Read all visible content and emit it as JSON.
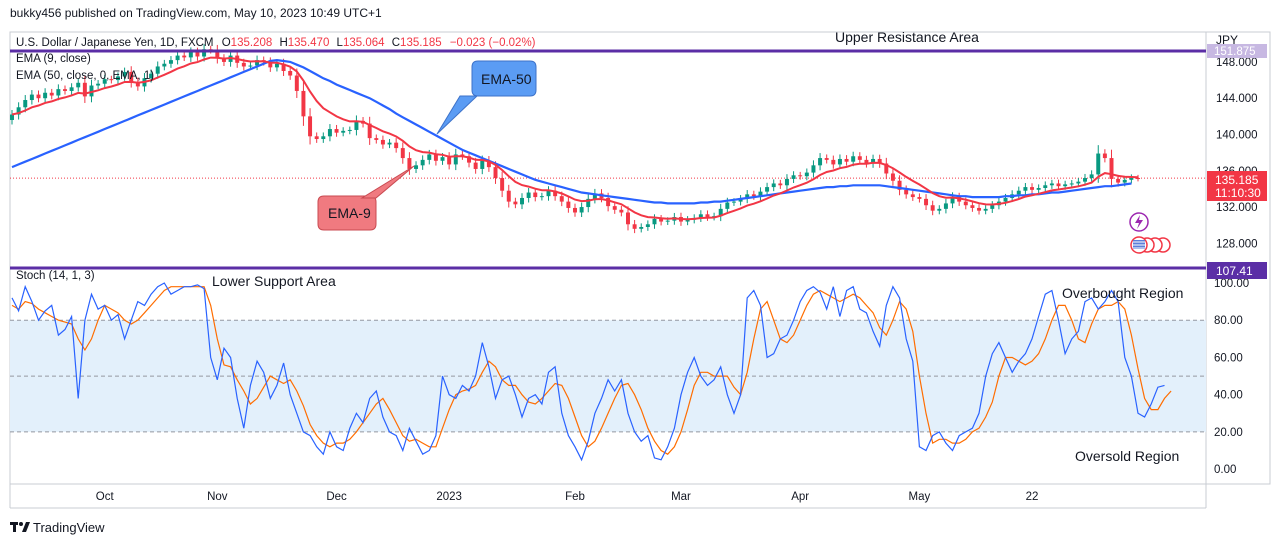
{
  "header": {
    "publisher": "bukky456 published on TradingView.com, May 10, 2023 10:49 UTC+1"
  },
  "footer": {
    "brand": "TradingView"
  },
  "colors": {
    "ema9": "#f23645",
    "ema50": "#2962ff",
    "candle_up": "#089981",
    "candle_down": "#f23645",
    "level_line": "#5b2ea6",
    "stoch_k": "#2962ff",
    "stoch_d": "#ff6d00",
    "band_fill": "#e3f0fb",
    "callout_ema50": "#5b9cf4",
    "callout_ema9": "#f07a80"
  },
  "legend": {
    "symbol_line": "U.S. Dollar / Japanese Yen, 1D, FXCM",
    "ohlc": [
      {
        "k": "O",
        "v": "135.208"
      },
      {
        "k": "H",
        "v": "135.470"
      },
      {
        "k": "L",
        "v": "135.064"
      },
      {
        "k": "C",
        "v": "135.185"
      }
    ],
    "change": "−0.023 (−0.02%)",
    "ema9_label": "EMA (9, close)",
    "ema50_label": "EMA (50, close, 0, EMA, 1)"
  },
  "annotations": {
    "upper_resistance": "Upper Resistance Area",
    "lower_support": "Lower Support Area",
    "ema50_callout": "EMA-50",
    "ema9_callout": "EMA-9",
    "overbought": "Overbought Region",
    "oversold": "Oversold Region"
  },
  "chart_data": [
    {
      "type": "candlestick",
      "currency": "JPY",
      "y_ticks": [
        "128.000",
        "132.000",
        "136.000",
        "140.000",
        "144.000",
        "148.000"
      ],
      "ylim": [
        125.5,
        151.3
      ],
      "resistance_level": "151.875",
      "support_level": "107.41",
      "last_price": "135.185",
      "countdown": "11:10:30",
      "x_labels": [
        "Oct",
        "Nov",
        "Dec",
        "2023",
        "Feb",
        "Mar",
        "Apr",
        "May",
        "22"
      ],
      "close": [
        142.2,
        143.0,
        143.8,
        144.4,
        144.0,
        144.6,
        144.3,
        145.0,
        144.8,
        145.2,
        145.7,
        144.2,
        145.4,
        145.6,
        146.1,
        146.0,
        146.4,
        146.9,
        145.8,
        145.3,
        146.2,
        146.7,
        147.5,
        147.8,
        148.2,
        148.7,
        148.5,
        149.1,
        148.6,
        149.4,
        149.3,
        148.4,
        148.0,
        148.7,
        147.9,
        147.5,
        147.6,
        148.2,
        148.0,
        147.4,
        147.8,
        147.0,
        146.5,
        144.8,
        142.0,
        139.8,
        139.5,
        139.8,
        140.6,
        140.2,
        140.4,
        140.5,
        141.5,
        141.2,
        139.6,
        139.4,
        138.9,
        139.1,
        138.5,
        137.4,
        136.2,
        136.6,
        137.2,
        137.8,
        137.1,
        137.5,
        136.7,
        137.8,
        137.6,
        136.9,
        136.2,
        137.1,
        136.4,
        135.2,
        133.8,
        132.6,
        132.3,
        133.0,
        133.6,
        133.1,
        133.2,
        133.8,
        133.2,
        132.6,
        131.9,
        131.4,
        132.0,
        132.9,
        133.5,
        133.0,
        132.1,
        131.7,
        131.4,
        130.1,
        129.6,
        129.8,
        130.1,
        130.7,
        130.4,
        130.5,
        130.9,
        130.4,
        130.6,
        130.8,
        131.2,
        130.9,
        131.0,
        131.8,
        132.5,
        132.6,
        132.9,
        133.4,
        133.2,
        133.7,
        134.2,
        134.6,
        134.4,
        135.1,
        135.5,
        135.4,
        135.8,
        136.6,
        137.4,
        137.2,
        136.7,
        137.3,
        137.0,
        137.6,
        137.2,
        136.8,
        137.3,
        136.8,
        135.7,
        134.9,
        133.9,
        133.4,
        133.1,
        132.9,
        132.2,
        131.6,
        131.8,
        132.4,
        133.1,
        132.6,
        132.2,
        131.9,
        131.6,
        131.8,
        132.2,
        132.6,
        133.0,
        133.4,
        133.8,
        134.2,
        133.9,
        134.1,
        134.4,
        134.6,
        134.3,
        134.5,
        134.6,
        134.8,
        135.2,
        135.6,
        137.9,
        137.4,
        135.1,
        134.7,
        135.0,
        135.2,
        135.185
      ],
      "ema50": [
        136.4,
        136.7,
        137.0,
        137.3,
        137.6,
        137.9,
        138.2,
        138.5,
        138.8,
        139.1,
        139.4,
        139.7,
        140.0,
        140.3,
        140.6,
        140.9,
        141.2,
        141.5,
        141.8,
        142.1,
        142.4,
        142.7,
        143.0,
        143.3,
        143.6,
        143.9,
        144.2,
        144.5,
        144.8,
        145.1,
        145.4,
        145.7,
        146.0,
        146.3,
        146.6,
        146.9,
        147.2,
        147.5,
        147.8,
        148.1,
        148.2,
        148.1,
        148.0,
        147.7,
        147.4,
        147.0,
        146.6,
        146.2,
        145.9,
        145.5,
        145.2,
        144.9,
        144.6,
        144.3,
        144.0,
        143.6,
        143.2,
        142.8,
        142.3,
        141.9,
        141.5,
        141.1,
        140.7,
        140.3,
        139.9,
        139.5,
        139.1,
        138.7,
        138.3,
        138.0,
        137.7,
        137.4,
        137.1,
        136.8,
        136.5,
        136.2,
        135.9,
        135.6,
        135.3,
        135.0,
        134.8,
        134.6,
        134.4,
        134.2,
        134.0,
        133.8,
        133.6,
        133.5,
        133.4,
        133.3,
        133.2,
        133.1,
        133.0,
        132.9,
        132.8,
        132.7,
        132.6,
        132.5,
        132.5,
        132.4,
        132.4,
        132.4,
        132.4,
        132.4,
        132.5,
        132.5,
        132.6,
        132.6,
        132.7,
        132.8,
        132.9,
        133.0,
        133.1,
        133.2,
        133.3,
        133.4,
        133.5,
        133.6,
        133.7,
        133.8,
        133.9,
        134.0,
        134.1,
        134.2,
        134.2,
        134.3,
        134.3,
        134.4,
        134.4,
        134.4,
        134.4,
        134.4,
        134.3,
        134.2,
        134.1,
        134.0,
        133.9,
        133.8,
        133.7,
        133.6,
        133.5,
        133.4,
        133.3,
        133.2,
        133.2,
        133.1,
        133.1,
        133.1,
        133.1,
        133.1,
        133.2,
        133.2,
        133.3,
        133.3,
        133.4,
        133.4,
        133.5,
        133.6,
        133.6,
        133.7,
        133.8,
        133.9,
        134.0,
        134.1,
        134.2,
        134.3,
        134.3,
        134.4,
        134.5,
        134.6
      ],
      "y_axis_label": "JPY"
    },
    {
      "type": "line",
      "title": "Stoch (14, 1, 3)",
      "y_ticks": [
        "0.00",
        "20.00",
        "40.00",
        "60.00",
        "80.00",
        "100.00"
      ],
      "ylim": [
        -8,
        107
      ],
      "band": [
        20,
        80
      ],
      "midline": 50,
      "k": [
        92,
        85,
        98,
        90,
        80,
        85,
        88,
        72,
        75,
        82,
        38,
        80,
        94,
        86,
        88,
        80,
        83,
        70,
        80,
        90,
        88,
        94,
        98,
        100,
        94,
        96,
        98,
        98,
        99,
        97,
        60,
        48,
        65,
        60,
        38,
        22,
        45,
        58,
        52,
        38,
        45,
        57,
        40,
        30,
        20,
        18,
        12,
        8,
        20,
        12,
        10,
        22,
        30,
        25,
        38,
        42,
        28,
        20,
        18,
        10,
        22,
        15,
        8,
        10,
        18,
        50,
        40,
        38,
        45,
        42,
        50,
        68,
        55,
        38,
        48,
        50,
        40,
        28,
        38,
        40,
        35,
        52,
        55,
        30,
        18,
        12,
        5,
        15,
        30,
        38,
        48,
        42,
        48,
        30,
        20,
        15,
        18,
        6,
        5,
        12,
        22,
        40,
        52,
        60,
        50,
        45,
        48,
        55,
        40,
        30,
        40,
        92,
        96,
        88,
        60,
        62,
        70,
        72,
        80,
        90,
        96,
        98,
        95,
        86,
        98,
        82,
        96,
        98,
        86,
        84,
        74,
        66,
        88,
        98,
        92,
        70,
        58,
        12,
        10,
        18,
        20,
        14,
        10,
        18,
        20,
        22,
        30,
        50,
        62,
        68,
        60,
        52,
        58,
        62,
        70,
        82,
        94,
        96,
        80,
        62,
        70,
        74,
        90,
        92,
        86,
        90,
        96,
        90,
        60,
        50,
        30,
        28,
        35,
        44,
        45
      ],
      "d": [
        88,
        86,
        90,
        89,
        86,
        84,
        82,
        80,
        79,
        78,
        70,
        64,
        70,
        80,
        88,
        86,
        84,
        80,
        78,
        80,
        84,
        88,
        92,
        96,
        98,
        98,
        98,
        98,
        98,
        98,
        88,
        70,
        56,
        55,
        48,
        42,
        35,
        38,
        44,
        50,
        48,
        46,
        48,
        42,
        34,
        24,
        18,
        14,
        12,
        14,
        14,
        16,
        20,
        25,
        30,
        35,
        38,
        32,
        25,
        18,
        15,
        16,
        14,
        12,
        12,
        22,
        32,
        40,
        42,
        43,
        45,
        52,
        58,
        55,
        48,
        45,
        45,
        40,
        36,
        35,
        38,
        42,
        46,
        45,
        38,
        28,
        18,
        12,
        15,
        22,
        30,
        38,
        45,
        46,
        40,
        32,
        22,
        15,
        10,
        8,
        12,
        20,
        32,
        45,
        52,
        52,
        50,
        50,
        50,
        44,
        40,
        52,
        70,
        86,
        90,
        80,
        70,
        68,
        72,
        80,
        88,
        94,
        96,
        94,
        92,
        90,
        92,
        94,
        92,
        88,
        84,
        76,
        72,
        80,
        90,
        86,
        74,
        50,
        30,
        14,
        16,
        16,
        14,
        14,
        16,
        20,
        22,
        28,
        36,
        50,
        60,
        60,
        58,
        56,
        58,
        62,
        70,
        80,
        88,
        88,
        80,
        70,
        68,
        78,
        86,
        88,
        88,
        90,
        86,
        72,
        54,
        38,
        32,
        32,
        38,
        42
      ]
    }
  ]
}
